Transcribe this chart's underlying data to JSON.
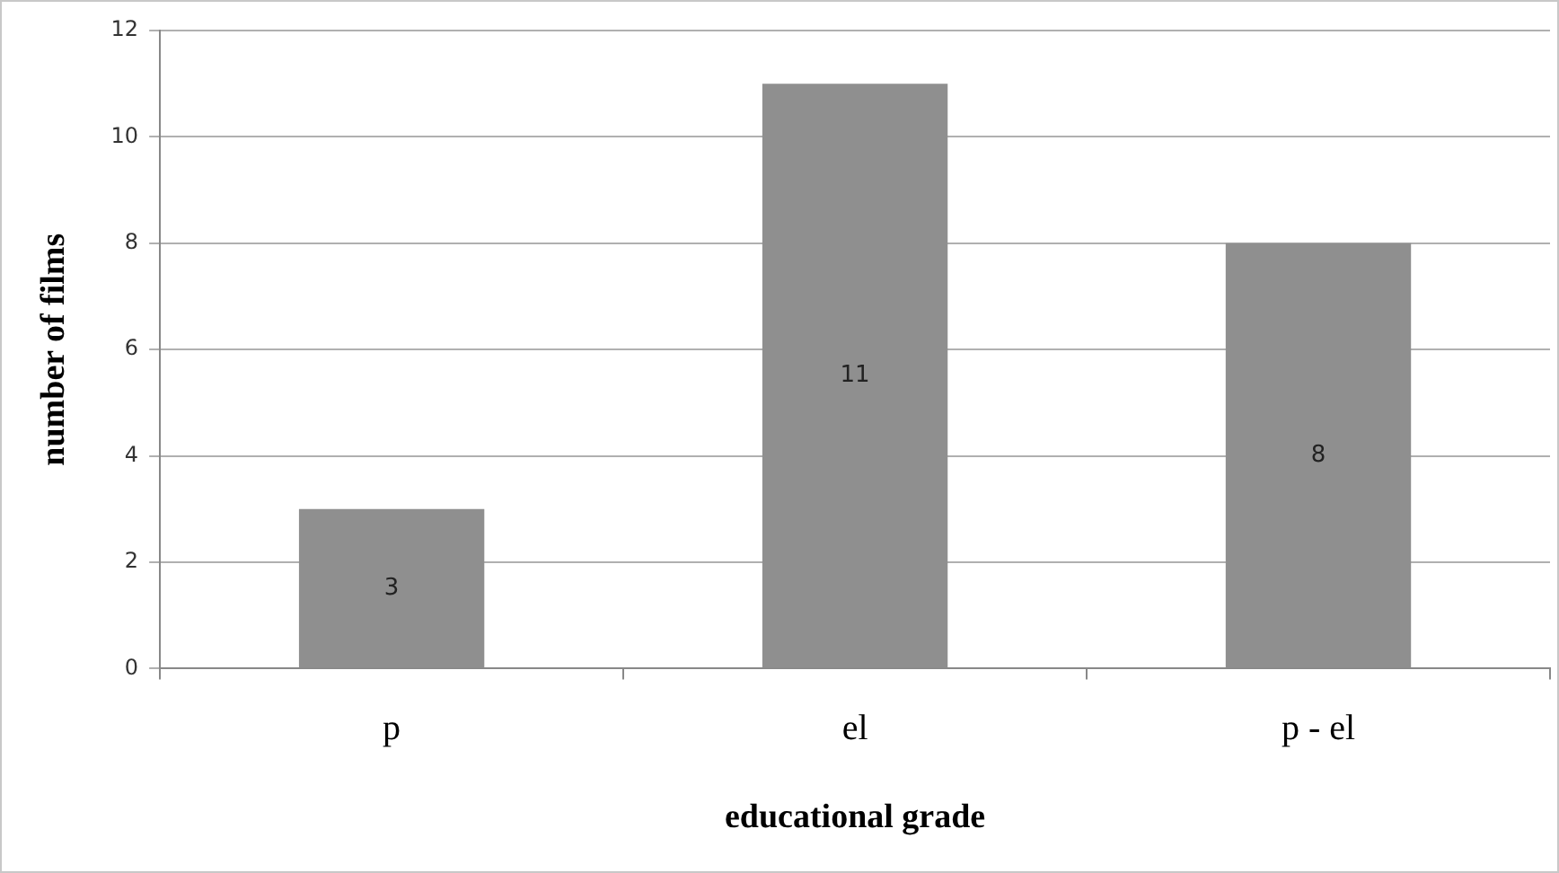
{
  "chart_data": {
    "type": "bar",
    "xlabel": "educational grade",
    "ylabel": "number of films",
    "categories": [
      "p",
      "el",
      "p - el"
    ],
    "values": [
      3,
      11,
      8
    ],
    "color": "#8f8f8f",
    "ylim": [
      0,
      12
    ],
    "yticks": [
      0,
      2,
      4,
      6,
      8,
      10,
      12
    ],
    "grid": "y",
    "legend": false,
    "data_labels": true
  }
}
